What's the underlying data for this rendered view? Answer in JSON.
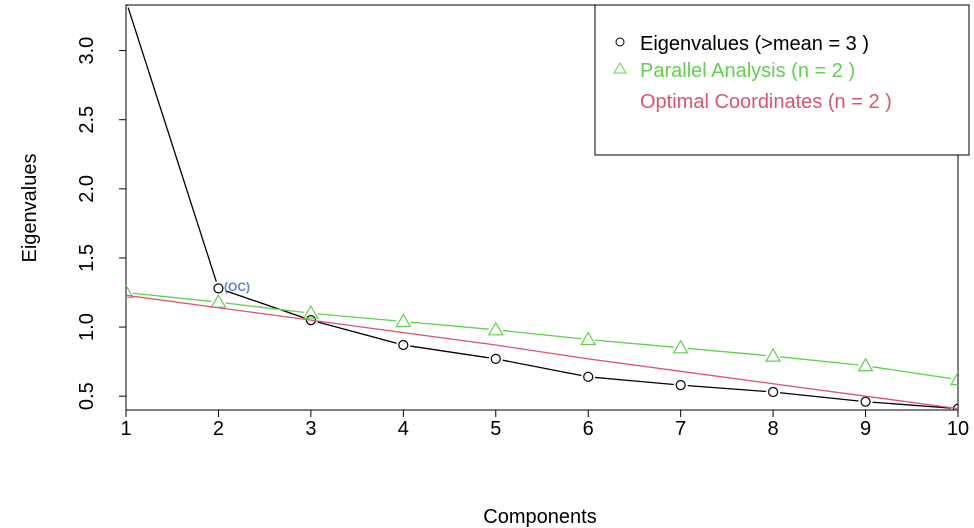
{
  "colors": {
    "eigen": "#000000",
    "parallel": "#61D04F",
    "optimal": "#DF536B",
    "annotation": "#6A7FC9"
  },
  "chart_data": {
    "type": "line",
    "xlabel": "Components",
    "ylabel": "Eigenvalues",
    "xlim": [
      1,
      10
    ],
    "ylim": [
      0.4,
      3.33
    ],
    "x_ticks": [
      1,
      2,
      3,
      4,
      5,
      6,
      7,
      8,
      9,
      10
    ],
    "y_ticks": [
      0.5,
      1.0,
      1.5,
      2.0,
      2.5,
      3.0
    ],
    "y_tick_labels": [
      "0.5",
      "1.0",
      "1.5",
      "2.0",
      "2.5",
      "3.0"
    ],
    "x": [
      1,
      2,
      3,
      4,
      5,
      6,
      7,
      8,
      9,
      10
    ],
    "series": [
      {
        "name": "Eigenvalues (>mean  =  3 )",
        "marker": "circle",
        "values": [
          3.36,
          1.28,
          1.05,
          0.87,
          0.77,
          0.64,
          0.58,
          0.53,
          0.46,
          0.41
        ]
      },
      {
        "name": "Parallel Analysis (n =  2 )",
        "marker": "triangle",
        "values": [
          1.25,
          1.18,
          1.1,
          1.04,
          0.98,
          0.91,
          0.85,
          0.79,
          0.72,
          0.62
        ]
      },
      {
        "name": "Optimal Coordinates (n =  2 )",
        "marker": "none",
        "values": [
          1.23,
          1.14,
          1.05,
          0.96,
          0.87,
          0.77,
          0.68,
          0.59,
          0.5,
          0.41
        ]
      }
    ],
    "annotation": {
      "text": "(OC)",
      "x": 2,
      "y": 1.28
    },
    "legend_position": "top-right"
  }
}
